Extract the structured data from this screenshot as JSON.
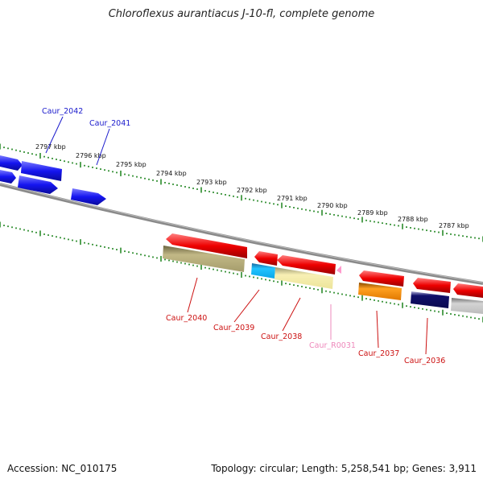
{
  "title": "Chloroflexus aurantiacus J-10-fl, complete genome",
  "footer": {
    "accession": "Accession: NC_010175",
    "topology": "Topology: circular; Length: 5,258,541 bp; Genes: 3,911"
  },
  "scale_labels": [
    "2797 kbp",
    "2796 kbp",
    "2795 kbp",
    "2794 kbp",
    "2793 kbp",
    "2792 kbp",
    "2791 kbp",
    "2790 kbp",
    "2789 kbp",
    "2788 kbp",
    "2787 kbp"
  ],
  "gene_labels": [
    {
      "text": "Caur_2042",
      "color": "#1a1acc"
    },
    {
      "text": "Caur_2041",
      "color": "#1a1acc"
    },
    {
      "text": "Caur_2040",
      "color": "#cc1111"
    },
    {
      "text": "Caur_2039",
      "color": "#cc1111"
    },
    {
      "text": "Caur_2038",
      "color": "#cc1111"
    },
    {
      "text": "Caur_R0031",
      "color": "#ee88bb"
    },
    {
      "text": "Caur_2037",
      "color": "#cc1111"
    },
    {
      "text": "Caur_2036",
      "color": "#cc1111"
    }
  ],
  "colors": {
    "forward_gene": "#1010ee",
    "reverse_gene": "#ee0000",
    "backbone": "#808080",
    "ticks": "#2a8a2a"
  }
}
